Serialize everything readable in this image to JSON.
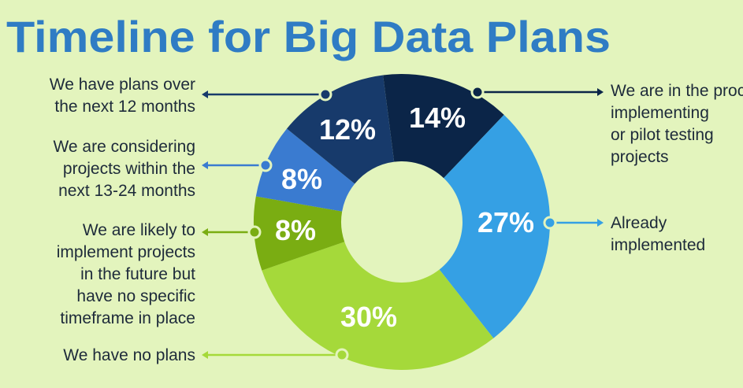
{
  "chart_data": {
    "type": "pie",
    "donut": true,
    "title": "Timeline for Big Data Plans",
    "title_color": "#2f7cc4",
    "slices": [
      {
        "label": "We are in the process of implementing or pilot testing projects",
        "value": 14,
        "value_label": "14%",
        "color": "#0b2548",
        "lines": [
          "We are in the process of",
          "implementing",
          "or pilot testing",
          "projects"
        ]
      },
      {
        "label": "Already implemented",
        "value": 27,
        "value_label": "27%",
        "color": "#35a0e4",
        "lines": [
          "Already",
          "implemented"
        ]
      },
      {
        "label": "We have no plans",
        "value": 30,
        "value_label": "30%",
        "color": "#a5d93a",
        "lines": [
          "We have no plans"
        ]
      },
      {
        "label": "We are likely to implement projects in the future but have no specific timeframe in place",
        "value": 8,
        "value_label": "8%",
        "color": "#7aad12",
        "lines": [
          "We are likely to",
          "implement projects",
          "in the future but",
          "have no specific",
          "timeframe in place"
        ]
      },
      {
        "label": "We are considering projects within the next 13-24 months",
        "value": 8,
        "value_label": "8%",
        "color": "#3a7bd0",
        "lines": [
          "We are considering",
          "projects within the",
          "next 13-24 months"
        ]
      },
      {
        "label": "We have plans over the next 12 months",
        "value": 12,
        "value_label": "12%",
        "color": "#173a6b",
        "lines": [
          "We have plans over",
          "the next 12 months"
        ]
      }
    ]
  }
}
